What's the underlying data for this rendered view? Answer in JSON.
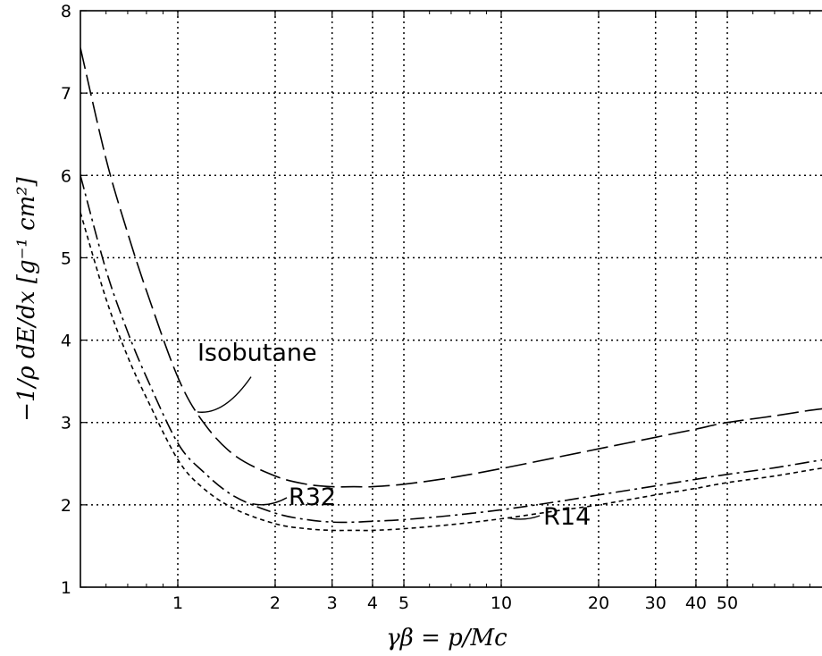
{
  "chart_data": {
    "type": "line",
    "title": "",
    "xlabel": "γβ = p/Mc",
    "ylabel": "−1/ρ dE/dx [g⁻¹ cm²]",
    "xscale": "log",
    "xlim": [
      0.5,
      140
    ],
    "ylim": [
      1,
      8
    ],
    "grid": true,
    "x_ticks": [
      1,
      2,
      3,
      4,
      5,
      10,
      20,
      30,
      40,
      50
    ],
    "x_tick_labels": [
      "1",
      "2",
      "3",
      "4",
      "5",
      "10",
      "20",
      "30",
      "40",
      "50"
    ],
    "y_ticks": [
      1,
      2,
      3,
      4,
      5,
      6,
      7,
      8
    ],
    "y_tick_labels": [
      "1",
      "2",
      "3",
      "4",
      "5",
      "6",
      "7",
      "8"
    ],
    "series": [
      {
        "name": "Isobutane",
        "style": "long-dash",
        "x": [
          0.5,
          0.6,
          0.7,
          0.8,
          1.0,
          1.2,
          1.5,
          2.0,
          2.5,
          3.0,
          3.5,
          4.0,
          5.0,
          7.0,
          10,
          15,
          20,
          30,
          40,
          50,
          70,
          100,
          140
        ],
        "y": [
          7.55,
          6.2,
          5.3,
          4.6,
          3.55,
          3.0,
          2.6,
          2.35,
          2.25,
          2.22,
          2.22,
          2.22,
          2.25,
          2.33,
          2.44,
          2.58,
          2.68,
          2.82,
          2.92,
          3.0,
          3.08,
          3.17,
          3.2
        ]
      },
      {
        "name": "R32",
        "style": "dash-dot",
        "x": [
          0.5,
          0.6,
          0.7,
          0.8,
          1.0,
          1.2,
          1.5,
          2.0,
          2.5,
          3.0,
          3.5,
          4.0,
          5.0,
          7.0,
          10,
          15,
          20,
          30,
          40,
          50,
          70,
          100,
          140
        ],
        "y": [
          6.0,
          4.85,
          4.1,
          3.55,
          2.75,
          2.4,
          2.1,
          1.9,
          1.82,
          1.79,
          1.79,
          1.8,
          1.82,
          1.87,
          1.94,
          2.04,
          2.12,
          2.23,
          2.31,
          2.37,
          2.45,
          2.55,
          2.63
        ]
      },
      {
        "name": "R14",
        "style": "short-dash",
        "x": [
          0.5,
          0.6,
          0.7,
          0.8,
          1.0,
          1.2,
          1.5,
          2.0,
          2.5,
          3.0,
          3.5,
          4.0,
          5.0,
          7.0,
          10,
          15,
          20,
          30,
          40,
          50,
          70,
          100,
          140
        ],
        "y": [
          5.55,
          4.5,
          3.8,
          3.3,
          2.55,
          2.2,
          1.95,
          1.77,
          1.71,
          1.69,
          1.69,
          1.69,
          1.71,
          1.76,
          1.83,
          1.93,
          2.0,
          2.12,
          2.2,
          2.27,
          2.35,
          2.45,
          2.52
        ]
      }
    ],
    "annotations": [
      {
        "text": "Isobutane",
        "series": "Isobutane",
        "at_x": 1.15,
        "text_x": 1.15,
        "text_y": 3.75
      },
      {
        "text": "R32",
        "series": "R32",
        "at_x": 1.7,
        "text_x": 2.2,
        "text_y": 2.0
      },
      {
        "text": "R14",
        "series": "R14",
        "at_x": 10.5,
        "text_x": 13.5,
        "text_y": 1.76
      }
    ],
    "colors": {
      "line": "#000000",
      "grid": "#000000",
      "background": "#ffffff"
    }
  }
}
